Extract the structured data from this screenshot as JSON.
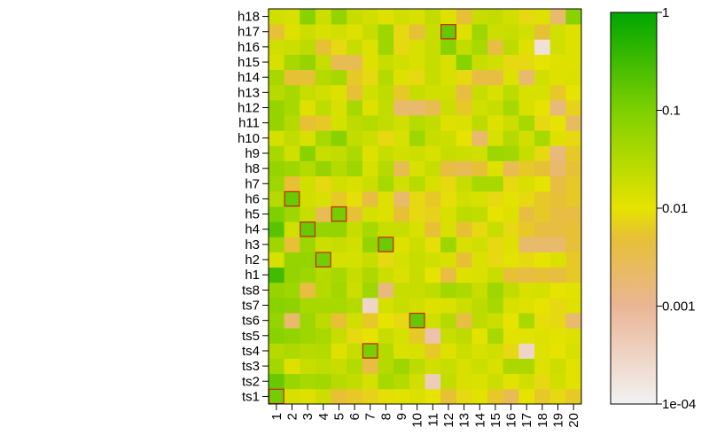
{
  "chart_data": {
    "type": "heatmap",
    "title": "",
    "xlabel": "",
    "ylabel": "",
    "x_categories": [
      "1",
      "2",
      "3",
      "4",
      "5",
      "6",
      "7",
      "8",
      "9",
      "10",
      "11",
      "12",
      "13",
      "14",
      "15",
      "16",
      "17",
      "18",
      "19",
      "20"
    ],
    "y_categories": [
      "ts1",
      "ts2",
      "ts3",
      "ts4",
      "ts5",
      "ts6",
      "ts7",
      "ts8",
      "h1",
      "h2",
      "h3",
      "h4",
      "h5",
      "h6",
      "h7",
      "h8",
      "h9",
      "h10",
      "h11",
      "h12",
      "h13",
      "h14",
      "h15",
      "h16",
      "h17",
      "h18"
    ],
    "color_scale": {
      "type": "log",
      "min": 0.0001,
      "max": 1,
      "ticks": [
        {
          "value": 1,
          "label": "1"
        },
        {
          "value": 0.1,
          "label": "0.1"
        },
        {
          "value": 0.01,
          "label": "0.01"
        },
        {
          "value": 0.001,
          "label": "0.001"
        },
        {
          "value": 0.0001,
          "label": "1e-04"
        }
      ],
      "colors": [
        {
          "value": 0.0001,
          "color": "#f2f2f2"
        },
        {
          "value": 0.001,
          "color": "#eab595"
        },
        {
          "value": 0.005,
          "color": "#e6c035"
        },
        {
          "value": 0.01,
          "color": "#e6e300"
        },
        {
          "value": 0.1,
          "color": "#7ed000"
        },
        {
          "value": 1,
          "color": "#00a600"
        }
      ]
    },
    "values": [
      [
        0.12,
        0.014,
        0.012,
        0.018,
        0.005,
        0.006,
        0.007,
        0.009,
        0.011,
        0.013,
        0.01,
        0.005,
        0.008,
        0.011,
        0.006,
        0.003,
        0.01,
        0.006,
        0.008,
        0.006
      ],
      [
        0.15,
        0.055,
        0.04,
        0.045,
        0.028,
        0.022,
        0.015,
        0.04,
        0.03,
        0.016,
        0.0004,
        0.022,
        0.014,
        0.013,
        0.018,
        0.011,
        0.016,
        0.008,
        0.016,
        0.011
      ],
      [
        0.045,
        0.012,
        0.02,
        0.024,
        0.02,
        0.03,
        0.004,
        0.03,
        0.05,
        0.025,
        0.016,
        0.02,
        0.014,
        0.018,
        0.014,
        0.036,
        0.036,
        0.012,
        0.018,
        0.011
      ],
      [
        0.03,
        0.035,
        0.028,
        0.03,
        0.012,
        0.02,
        0.11,
        0.03,
        0.013,
        0.014,
        0.006,
        0.012,
        0.018,
        0.014,
        0.016,
        0.008,
        0.0003,
        0.012,
        0.01,
        0.014
      ],
      [
        0.08,
        0.065,
        0.05,
        0.04,
        0.02,
        0.008,
        0.01,
        0.02,
        0.015,
        0.006,
        0.0006,
        0.02,
        0.025,
        0.011,
        0.04,
        0.011,
        0.011,
        0.012,
        0.011,
        0.012
      ],
      [
        0.06,
        0.002,
        0.05,
        0.025,
        0.005,
        0.016,
        0.006,
        0.01,
        0.008,
        0.16,
        0.017,
        0.03,
        0.004,
        0.025,
        0.018,
        0.01,
        0.04,
        0.009,
        0.008,
        0.002
      ],
      [
        0.08,
        0.07,
        0.04,
        0.04,
        0.04,
        0.03,
        0.0003,
        0.015,
        0.02,
        0.016,
        0.012,
        0.013,
        0.018,
        0.025,
        0.04,
        0.014,
        0.012,
        0.01,
        0.008,
        0.012
      ],
      [
        0.06,
        0.05,
        0.004,
        0.03,
        0.045,
        0.018,
        0.05,
        0.0015,
        0.02,
        0.02,
        0.024,
        0.045,
        0.035,
        0.02,
        0.05,
        0.022,
        0.014,
        0.015,
        0.01,
        0.011
      ],
      [
        0.3,
        0.06,
        0.05,
        0.03,
        0.04,
        0.02,
        0.035,
        0.018,
        0.013,
        0.02,
        0.01,
        0.004,
        0.012,
        0.013,
        0.02,
        0.005,
        0.004,
        0.005,
        0.004,
        0.006
      ],
      [
        0.014,
        0.06,
        0.06,
        0.12,
        0.015,
        0.015,
        0.02,
        0.008,
        0.015,
        0.02,
        0.016,
        0.014,
        0.005,
        0.013,
        0.008,
        0.011,
        0.008,
        0.01,
        0.013,
        0.006
      ],
      [
        0.05,
        0.005,
        0.05,
        0.018,
        0.02,
        0.016,
        0.06,
        0.14,
        0.012,
        0.018,
        0.009,
        0.05,
        0.014,
        0.016,
        0.008,
        0.012,
        0.002,
        0.002,
        0.002,
        0.005
      ],
      [
        0.2,
        0.016,
        0.15,
        0.06,
        0.06,
        0.02,
        0.04,
        0.02,
        0.02,
        0.014,
        0.005,
        0.014,
        0.005,
        0.008,
        0.02,
        0.008,
        0.006,
        0.004,
        0.004,
        0.005
      ],
      [
        0.1,
        0.05,
        0.02,
        0.003,
        0.12,
        0.005,
        0.015,
        0.012,
        0.005,
        0.008,
        0.007,
        0.014,
        0.025,
        0.022,
        0.01,
        0.012,
        0.004,
        0.006,
        0.004,
        0.004
      ],
      [
        0.03,
        0.15,
        0.016,
        0.014,
        0.006,
        0.009,
        0.004,
        0.012,
        0.002,
        0.008,
        0.006,
        0.009,
        0.016,
        0.014,
        0.008,
        0.011,
        0.008,
        0.006,
        0.005,
        0.006
      ],
      [
        0.05,
        0.005,
        0.016,
        0.008,
        0.016,
        0.014,
        0.018,
        0.04,
        0.016,
        0.028,
        0.014,
        0.008,
        0.02,
        0.04,
        0.04,
        0.008,
        0.014,
        0.01,
        0.004,
        0.006
      ],
      [
        0.06,
        0.05,
        0.03,
        0.06,
        0.03,
        0.05,
        0.014,
        0.03,
        0.003,
        0.014,
        0.02,
        0.004,
        0.003,
        0.005,
        0.012,
        0.003,
        0.006,
        0.005,
        0.002,
        0.005
      ],
      [
        0.04,
        0.016,
        0.08,
        0.02,
        0.022,
        0.035,
        0.012,
        0.02,
        0.016,
        0.018,
        0.014,
        0.02,
        0.018,
        0.016,
        0.05,
        0.045,
        0.02,
        0.008,
        0.0015,
        0.006
      ],
      [
        0.015,
        0.022,
        0.014,
        0.04,
        0.08,
        0.022,
        0.018,
        0.008,
        0.014,
        0.05,
        0.02,
        0.018,
        0.01,
        0.002,
        0.014,
        0.03,
        0.016,
        0.04,
        0.012,
        0.008
      ],
      [
        0.06,
        0.03,
        0.005,
        0.006,
        0.015,
        0.025,
        0.03,
        0.022,
        0.016,
        0.028,
        0.022,
        0.012,
        0.013,
        0.025,
        0.012,
        0.018,
        0.04,
        0.008,
        0.01,
        0.0025
      ],
      [
        0.06,
        0.04,
        0.012,
        0.024,
        0.014,
        0.04,
        0.012,
        0.022,
        0.002,
        0.002,
        0.003,
        0.018,
        0.006,
        0.016,
        0.02,
        0.04,
        0.014,
        0.01,
        0.0015,
        0.007
      ],
      [
        0.028,
        0.04,
        0.02,
        0.016,
        0.012,
        0.005,
        0.016,
        0.024,
        0.006,
        0.02,
        0.016,
        0.016,
        0.004,
        0.02,
        0.014,
        0.025,
        0.014,
        0.014,
        0.006,
        0.01
      ],
      [
        0.04,
        0.005,
        0.005,
        0.03,
        0.04,
        0.006,
        0.008,
        0.03,
        0.012,
        0.008,
        0.02,
        0.014,
        0.008,
        0.004,
        0.004,
        0.012,
        0.002,
        0.016,
        0.012,
        0.013
      ],
      [
        0.014,
        0.04,
        0.06,
        0.02,
        0.003,
        0.003,
        0.012,
        0.02,
        0.016,
        0.014,
        0.02,
        0.014,
        0.08,
        0.02,
        0.016,
        0.008,
        0.008,
        0.01,
        0.012,
        0.012
      ],
      [
        0.016,
        0.018,
        0.025,
        0.005,
        0.008,
        0.02,
        0.012,
        0.05,
        0.008,
        0.014,
        0.02,
        0.08,
        0.022,
        0.04,
        0.004,
        0.025,
        0.012,
        0.0002,
        0.016,
        0.012
      ],
      [
        0.005,
        0.012,
        0.018,
        0.014,
        0.016,
        0.012,
        0.02,
        0.05,
        0.008,
        0.005,
        0.02,
        0.16,
        0.012,
        0.05,
        0.018,
        0.02,
        0.016,
        0.005,
        0.016,
        0.012
      ],
      [
        0.016,
        0.014,
        0.08,
        0.018,
        0.06,
        0.02,
        0.016,
        0.012,
        0.016,
        0.014,
        0.022,
        0.012,
        0.005,
        0.02,
        0.022,
        0.016,
        0.008,
        0.012,
        0.002,
        0.08
      ]
    ],
    "highlighted_cells": [
      {
        "x": "1",
        "y": "ts1"
      },
      {
        "x": "2",
        "y": "h6"
      },
      {
        "x": "3",
        "y": "h4"
      },
      {
        "x": "4",
        "y": "h2"
      },
      {
        "x": "5",
        "y": "h5"
      },
      {
        "x": "7",
        "y": "ts4"
      },
      {
        "x": "8",
        "y": "h3"
      },
      {
        "x": "10",
        "y": "ts6"
      },
      {
        "x": "12",
        "y": "h17"
      }
    ],
    "highlight_color": "#cc2200",
    "legend_position": "right",
    "grid": false
  }
}
